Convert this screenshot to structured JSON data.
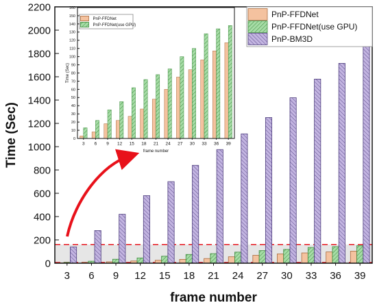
{
  "chart_data": [
    {
      "type": "bar",
      "title": "",
      "xlabel": "frame number",
      "ylabel": "Time (Sec)",
      "categories": [
        "3",
        "6",
        "9",
        "12",
        "15",
        "18",
        "21",
        "24",
        "27",
        "30",
        "33",
        "36",
        "39"
      ],
      "ylim": [
        0,
        2200
      ],
      "yticks": [
        0,
        200,
        400,
        600,
        800,
        1000,
        1200,
        1400,
        1600,
        1800,
        2000,
        2200
      ],
      "legend_position": "top-right",
      "series": [
        {
          "name": "PnP-FFDNet",
          "color": "#f4c29f",
          "values": [
            3,
            7,
            12,
            19,
            25,
            33,
            40,
            55,
            68,
            80,
            88,
            97,
            103
          ]
        },
        {
          "name": "PnP-FFDNet(use GPU)",
          "color": "#a6dca6",
          "values": [
            7,
            17,
            34,
            45,
            60,
            75,
            82,
            95,
            108,
            118,
            135,
            142,
            150
          ]
        },
        {
          "name": "PnP-BM3D",
          "color": "#c3b5e1",
          "values": [
            140,
            280,
            420,
            580,
            700,
            840,
            975,
            1110,
            1250,
            1420,
            1580,
            1715,
            1965
          ]
        }
      ],
      "highlight_band": [
        0,
        160
      ]
    },
    {
      "type": "bar",
      "title": "",
      "xlabel": "frame number",
      "ylabel": "Time (Sec)",
      "categories": [
        "3",
        "6",
        "9",
        "12",
        "15",
        "18",
        "21",
        "24",
        "27",
        "30",
        "33",
        "36",
        "39"
      ],
      "ylim": [
        0,
        160
      ],
      "yticks": [
        0,
        10,
        20,
        30,
        40,
        50,
        60,
        70,
        80,
        90,
        100,
        110,
        120,
        130,
        140,
        150,
        160
      ],
      "legend_position": "top-left",
      "series": [
        {
          "name": "PnP-FFDNet",
          "color": "#f4c29f",
          "values": [
            3,
            8,
            18,
            22,
            27,
            36,
            48,
            60,
            75,
            84,
            96,
            107,
            117
          ]
        },
        {
          "name": "PnP-FFDNet(use GPU)",
          "color": "#a6dca6",
          "values": [
            13,
            22,
            35,
            45,
            62,
            72,
            78,
            85,
            100,
            110,
            128,
            134,
            138
          ]
        }
      ]
    }
  ]
}
